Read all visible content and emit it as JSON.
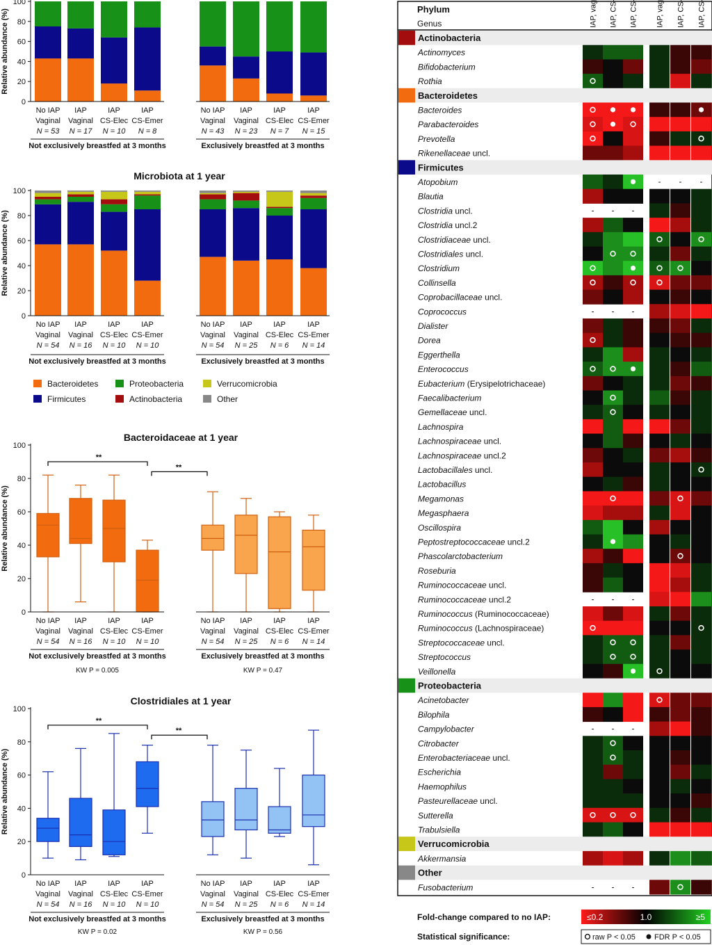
{
  "colors": {
    "Bacteroidetes": "#f26b0f",
    "Firmicutes": "#0a0a8a",
    "Proteobacteria": "#179117",
    "Actinobacteria": "#a30d0d",
    "Verrucomicrobia": "#c7c71a",
    "Other": "#888888",
    "box_orange_dark": "#f26b0f",
    "box_orange_light": "#f9a54e",
    "box_blue_dark": "#1e6bf0",
    "box_blue_light": "#93c2f5"
  },
  "common": {
    "groups": [
      "No IAP\nVaginal",
      "IAP\nVaginal",
      "IAP\nCS-Elec",
      "IAP\nCS-Emer",
      "No IAP\nVaginal",
      "IAP\nVaginal",
      "IAP\nCS-Elec",
      "IAP\nCS-Emer"
    ],
    "section_labels": [
      "Not exclusively breastfed at 3 months",
      "Exclusively breastfed at 3 months"
    ],
    "ylabel": "Relative abundance (%)",
    "legend": [
      "Bacteroidetes",
      "Firmicutes",
      "Proteobacteria",
      "Actinobacteria",
      "Verrucomicrobia",
      "Other"
    ]
  },
  "chart_data": [
    {
      "type": "bar",
      "id": "stack1",
      "title": "",
      "ylabel": "Relative abundance (%)",
      "ylim": [
        0,
        100
      ],
      "n": [
        "N = 53",
        "N = 17",
        "N = 10",
        "N = 8",
        "N = 43",
        "N = 23",
        "N = 7",
        "N = 15"
      ],
      "series": [
        {
          "name": "Bacteroidetes",
          "values": [
            43,
            43,
            18,
            11,
            36,
            23,
            8,
            6
          ]
        },
        {
          "name": "Firmicutes",
          "values": [
            32,
            30,
            46,
            63,
            19,
            22,
            42,
            43
          ]
        },
        {
          "name": "Proteobacteria",
          "values": [
            25,
            27,
            36,
            26,
            45,
            55,
            50,
            51
          ]
        }
      ]
    },
    {
      "type": "bar",
      "id": "stack2",
      "title": "Microbiota at 1 year",
      "ylabel": "Relative abundance (%)",
      "ylim": [
        0,
        100
      ],
      "n": [
        "N = 54",
        "N = 16",
        "N = 10",
        "N = 10",
        "N = 54",
        "N = 25",
        "N = 6",
        "N = 14"
      ],
      "series": [
        {
          "name": "Bacteroidetes",
          "values": [
            57,
            57,
            52,
            28,
            47,
            44,
            45,
            38
          ]
        },
        {
          "name": "Firmicutes",
          "values": [
            32,
            34,
            31,
            57,
            38,
            42,
            35,
            47
          ]
        },
        {
          "name": "Proteobacteria",
          "values": [
            4,
            4,
            6,
            11,
            8,
            6,
            6,
            9
          ]
        },
        {
          "name": "Actinobacteria",
          "values": [
            2,
            2,
            4,
            1,
            4,
            6,
            1,
            2
          ]
        },
        {
          "name": "Verrucomicrobia",
          "values": [
            3,
            2,
            6,
            2,
            1,
            1,
            12,
            2
          ]
        },
        {
          "name": "Other",
          "values": [
            2,
            1,
            1,
            1,
            2,
            1,
            1,
            2
          ]
        }
      ]
    },
    {
      "type": "box",
      "id": "box1",
      "title": "Bacteroidaceae at 1 year",
      "ylabel": "Relative abundance (%)",
      "ylim": [
        0,
        100
      ],
      "n": [
        "N = 54",
        "N = 16",
        "N = 10",
        "N = 10",
        "N = 54",
        "N = 25",
        "N = 6",
        "N = 14"
      ],
      "kw": [
        "KW P = 0.005",
        "KW P = 0.47"
      ],
      "significance": [
        "**",
        "**"
      ],
      "boxes": [
        [
          0,
          33,
          52,
          59,
          82
        ],
        [
          6,
          41,
          44,
          68,
          76
        ],
        [
          0,
          30,
          50,
          67,
          82
        ],
        [
          0,
          0,
          19,
          37,
          43
        ],
        [
          0,
          37,
          44,
          52,
          72
        ],
        [
          0,
          23,
          46,
          58,
          68
        ],
        [
          0,
          2,
          36,
          57,
          60
        ],
        [
          0,
          13,
          39,
          49,
          58
        ]
      ]
    },
    {
      "type": "box",
      "id": "box2",
      "title": "Clostridiales at 1 year",
      "ylabel": "Relative abundance (%)",
      "ylim": [
        0,
        100
      ],
      "n": [
        "N = 54",
        "N = 16",
        "N = 10",
        "N = 10",
        "N = 54",
        "N = 25",
        "N = 6",
        "N = 14"
      ],
      "kw": [
        "KW P = 0.02",
        "KW P = 0.56"
      ],
      "significance": [
        "**",
        "**"
      ],
      "boxes": [
        [
          10,
          20,
          28,
          34,
          62
        ],
        [
          9,
          17,
          24,
          46,
          76
        ],
        [
          11,
          12,
          20,
          39,
          85
        ],
        [
          25,
          41,
          52,
          68,
          78
        ],
        [
          12,
          23,
          33,
          44,
          78
        ],
        [
          10,
          27,
          33,
          52,
          75
        ],
        [
          23,
          25,
          27,
          41,
          64
        ],
        [
          6,
          29,
          36,
          60,
          87
        ]
      ]
    },
    {
      "type": "heatmap",
      "id": "heatmap",
      "col_headers": [
        "IAP, vaginal",
        "IAP, CS-Elec",
        "IAP, CS-Emer",
        "IAP, vaginal",
        "IAP, CS-Elec",
        "IAP, CS-Emer"
      ],
      "row_header": [
        "Phylum",
        "Genus"
      ],
      "rows": [
        {
          "phylum": "Actinobacteria"
        },
        {
          "genus": "Actinomyces",
          "v": [
            "g1",
            "g2",
            "g2",
            "g1",
            "r1",
            "r1"
          ]
        },
        {
          "genus": "Bifidobacterium",
          "v": [
            "r1",
            "k",
            "r2",
            "g1",
            "r1",
            "r2"
          ]
        },
        {
          "genus": "Rothia",
          "v": [
            "g2o",
            "k",
            "g1",
            "g1",
            "r4",
            "g1"
          ]
        },
        {
          "phylum": "Bacteroidetes"
        },
        {
          "genus": "Bacteroides",
          "v": [
            "r5o",
            "r5f",
            "r5f",
            "r1",
            "r1",
            "r2f"
          ]
        },
        {
          "genus": "Parabacteroides",
          "v": [
            "r4o",
            "r5f",
            "r4o",
            "r5",
            "r5",
            "r5"
          ]
        },
        {
          "genus": "Prevotella",
          "v": [
            "r5o",
            "k",
            "r4",
            "r1",
            "g1",
            "g1o"
          ]
        },
        {
          "genus": "Rikenellaceae",
          "suffix": " uncl.",
          "v": [
            "r2",
            "r2",
            "r3",
            "r5",
            "r5",
            "r5"
          ]
        },
        {
          "phylum": "Firmicutes"
        },
        {
          "genus": "Atopobium",
          "v": [
            "g2",
            "g1",
            "g4f",
            "-",
            "-",
            "-"
          ]
        },
        {
          "genus": "Blautia",
          "v": [
            "r3",
            "k",
            "k",
            "k",
            "k",
            "g1"
          ]
        },
        {
          "genus": "Clostridia",
          "suffix": " uncl.",
          "v": [
            "-",
            "-",
            "-",
            "g1",
            "r1",
            "g1"
          ]
        },
        {
          "genus": "Clostridia",
          "suffix": " uncl.2",
          "v": [
            "r3",
            "g2",
            "k",
            "r5",
            "r3",
            "g1"
          ]
        },
        {
          "genus": "Clostridiaceae",
          "suffix": " uncl.",
          "v": [
            "g1",
            "g3",
            "g4",
            "g2o",
            "k",
            "g3o"
          ]
        },
        {
          "genus": "Clostridiales",
          "suffix": " uncl.",
          "v": [
            "k",
            "g3o",
            "g3o",
            "g1",
            "r2",
            "g1"
          ]
        },
        {
          "genus": "Clostridium",
          "v": [
            "g4o",
            "g3",
            "g4f",
            "g2o",
            "g3o",
            "k"
          ]
        },
        {
          "genus": "Collinsella",
          "v": [
            "r3o",
            "r1",
            "r3o",
            "r4o",
            "r2",
            "r2"
          ]
        },
        {
          "genus": "Coprobacillaceae",
          "suffix": " uncl.",
          "v": [
            "r2",
            "k",
            "r3",
            "k",
            "r1",
            "k"
          ]
        },
        {
          "genus": "Coprococcus",
          "v": [
            "-",
            "-",
            "-",
            "r3",
            "r4",
            "r5"
          ]
        },
        {
          "genus": "Dialister",
          "v": [
            "r2",
            "g1",
            "r1",
            "r1",
            "r2",
            "g1"
          ]
        },
        {
          "genus": "Dorea",
          "v": [
            "r3o",
            "g1",
            "r1",
            "k",
            "r1",
            "r1"
          ]
        },
        {
          "genus": "Eggerthella",
          "v": [
            "g1",
            "g3",
            "r3",
            "g1",
            "k",
            "g1"
          ]
        },
        {
          "genus": "Enterococcus",
          "v": [
            "g2o",
            "g3o",
            "g3f",
            "g1",
            "r1",
            "g2"
          ]
        },
        {
          "genus": "Eubacterium",
          "suffix": " (Erysipelotrichaceae)",
          "v": [
            "r2",
            "k",
            "g1",
            "g1",
            "r2",
            "r1"
          ]
        },
        {
          "genus": "Faecalibacterium",
          "v": [
            "k",
            "g3o",
            "g1",
            "g2",
            "r1",
            "g1"
          ]
        },
        {
          "genus": "Gemellaceae",
          "suffix": " uncl.",
          "v": [
            "g1",
            "g2o",
            "k",
            "g1",
            "k",
            "g1"
          ]
        },
        {
          "genus": "Lachnospira",
          "v": [
            "r5",
            "g2",
            "r5",
            "r5",
            "r2",
            "g1"
          ]
        },
        {
          "genus": "Lachnospiraceae",
          "suffix": " uncl.",
          "v": [
            "k",
            "g2",
            "r1",
            "k",
            "g1",
            "k"
          ]
        },
        {
          "genus": "Lachnospiraceae",
          "suffix": " uncl.2",
          "v": [
            "r2",
            "k",
            "g1",
            "r2",
            "r3",
            "r1"
          ]
        },
        {
          "genus": "Lactobacillales",
          "suffix": " uncl.",
          "v": [
            "r3",
            "k",
            "k",
            "g1",
            "k",
            "g1o"
          ]
        },
        {
          "genus": "Lactobacillus",
          "v": [
            "k",
            "g1",
            "r1",
            "g1",
            "k",
            "k"
          ]
        },
        {
          "genus": "Megamonas",
          "v": [
            "r5",
            "r5o",
            "r5",
            "r2",
            "r4o",
            "r2"
          ]
        },
        {
          "genus": "Megasphaera",
          "v": [
            "r4",
            "r3",
            "r3",
            "g1",
            "r4",
            "k"
          ]
        },
        {
          "genus": "Oscillospira",
          "v": [
            "g2",
            "g4",
            "k",
            "r3",
            "k",
            "k"
          ]
        },
        {
          "genus": "Peptostreptococcaceae",
          "suffix": " uncl.2",
          "v": [
            "g1",
            "g4f",
            "g3",
            "k",
            "g1",
            "k"
          ]
        },
        {
          "genus": "Phascolarctobacterium",
          "v": [
            "r3",
            "r1",
            "r5",
            "k",
            "r2o",
            "k"
          ]
        },
        {
          "genus": "Roseburia",
          "v": [
            "r1",
            "g1",
            "k",
            "r5",
            "r4",
            "g1"
          ]
        },
        {
          "genus": "Ruminococcaceae",
          "suffix": " uncl.",
          "v": [
            "r1",
            "g2",
            "k",
            "r5",
            "r3",
            "g1"
          ]
        },
        {
          "genus": "Ruminococcaceae",
          "suffix": " uncl.2",
          "v": [
            "-",
            "-",
            "-",
            "r4",
            "r5",
            "g3"
          ]
        },
        {
          "genus": "Ruminococcus",
          "suffix": " (Ruminococcaceae)",
          "v": [
            "r4",
            "r2",
            "r4",
            "g1",
            "r2",
            "g1"
          ]
        },
        {
          "genus": "Ruminococcus",
          "suffix": " (Lachnospiraceae)",
          "v": [
            "r5o",
            "r5",
            "r5",
            "k",
            "k",
            "g1o"
          ]
        },
        {
          "genus": "Streptococcaceae",
          "suffix": " uncl.",
          "v": [
            "g1",
            "g2o",
            "g2o",
            "g1",
            "r2",
            "g1"
          ]
        },
        {
          "genus": "Streptococcus",
          "v": [
            "g1",
            "g2o",
            "g2o",
            "g1",
            "k",
            "g1"
          ]
        },
        {
          "genus": "Veillonella",
          "v": [
            "k",
            "r1",
            "g4f",
            "g1o",
            "k",
            "k"
          ]
        },
        {
          "phylum": "Proteobacteria"
        },
        {
          "genus": "Acinetobacter",
          "v": [
            "r5",
            "g3",
            "r5",
            "r4o",
            "r2",
            "r2"
          ]
        },
        {
          "genus": "Bilophila",
          "v": [
            "r1",
            "k",
            "r5",
            "r1",
            "r2",
            "r1"
          ]
        },
        {
          "genus": "Campylobacter",
          "v": [
            "-",
            "-",
            "-",
            "r3",
            "r5",
            "r1"
          ]
        },
        {
          "genus": "Citrobacter",
          "v": [
            "g1",
            "g2o",
            "k",
            "k",
            "k",
            "k"
          ]
        },
        {
          "genus": "Enterobacteriaceae",
          "suffix": " uncl.",
          "v": [
            "g1",
            "g2o",
            "g1",
            "k",
            "r1",
            "k"
          ]
        },
        {
          "genus": "Escherichia",
          "v": [
            "g1",
            "r2",
            "g1",
            "k",
            "r2",
            "g1"
          ]
        },
        {
          "genus": "Haemophilus",
          "v": [
            "g1",
            "g1",
            "k",
            "k",
            "g1",
            "k"
          ]
        },
        {
          "genus": "Pasteurellaceae",
          "suffix": " uncl.",
          "v": [
            "g1",
            "g1",
            "g1",
            "k",
            "k",
            "r1"
          ]
        },
        {
          "genus": "Sutterella",
          "v": [
            "r4o",
            "r4o",
            "r4o",
            "g1",
            "r1",
            "g1"
          ]
        },
        {
          "genus": "Trabulsiella",
          "v": [
            "g1",
            "g2",
            "k",
            "r5",
            "r5",
            "r5"
          ]
        },
        {
          "phylum": "Verrucomicrobia"
        },
        {
          "genus": "Akkermansia",
          "v": [
            "r3",
            "r4",
            "r3",
            "g1",
            "g3",
            "g2"
          ]
        },
        {
          "phylum": "Other"
        },
        {
          "genus": "Fusobacterium",
          "v": [
            "-",
            "-",
            "-",
            "r2",
            "g3o",
            "r1"
          ]
        }
      ],
      "legend": {
        "fold_change_label": "Fold-change compared to no IAP:",
        "min": "≤0.2",
        "mid": "1.0",
        "max": "≥5",
        "significance_label": "Statistical significance:",
        "raw": "raw P < 0.05",
        "fdr": "FDR P < 0.05"
      }
    }
  ]
}
